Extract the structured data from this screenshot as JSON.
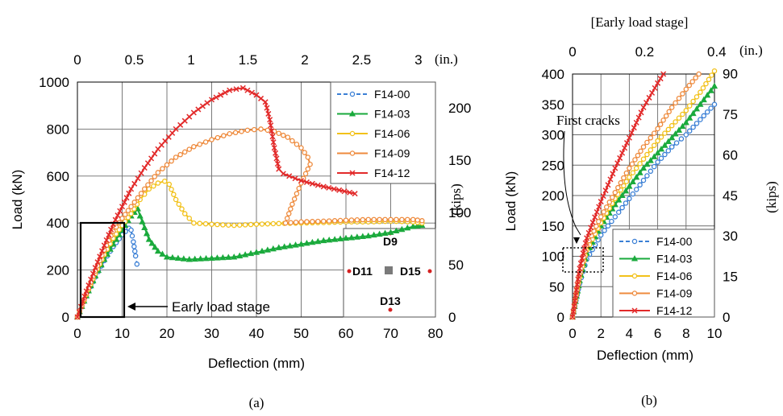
{
  "colors": {
    "F14-00": "#3a7fd5",
    "F14-03": "#1aaa3c",
    "F14-06": "#f2c11a",
    "F14-09": "#ee8a3c",
    "F14-12": "#e22a2a"
  },
  "chart_data": [
    {
      "id": "a",
      "type": "line",
      "panel_label": "(a)",
      "xlabel": "Deflection (mm)",
      "ylabel": "Load (kN)",
      "x2label": "(in.)",
      "y2label": "(kips)",
      "xlim": [
        0,
        80
      ],
      "ylim": [
        0,
        1000
      ],
      "x_ticks": [
        0,
        10,
        20,
        30,
        40,
        50,
        60,
        70,
        80
      ],
      "y_ticks": [
        0,
        200,
        400,
        600,
        800,
        1000
      ],
      "x2_ticks": [
        "0",
        "0.5",
        "1",
        "1.5",
        "2",
        "2.5",
        "3"
      ],
      "y2_ticks": [
        "0",
        "50",
        "100",
        "150",
        "200"
      ],
      "grid": true,
      "legend_position": "top-right",
      "annotation": "Early load stage",
      "inset_labels": [
        "D9",
        "D11",
        "D15",
        "D13"
      ],
      "series": [
        {
          "name": "F14-00",
          "marker": "circle",
          "dash": true,
          "points": [
            [
              0,
              0
            ],
            [
              2,
              90
            ],
            [
              4,
              170
            ],
            [
              6,
              240
            ],
            [
              8,
              300
            ],
            [
              10,
              350
            ],
            [
              11.5,
              378
            ],
            [
              12,
              370
            ],
            [
              12.5,
              320
            ],
            [
              13,
              260
            ],
            [
              13.3,
              225
            ]
          ]
        },
        {
          "name": "F14-03",
          "marker": "triangle",
          "points": [
            [
              0,
              0
            ],
            [
              2,
              90
            ],
            [
              4,
              175
            ],
            [
              6,
              245
            ],
            [
              8,
              310
            ],
            [
              10,
              370
            ],
            [
              12,
              430
            ],
            [
              13.5,
              460
            ],
            [
              14,
              430
            ],
            [
              15,
              380
            ],
            [
              16,
              330
            ],
            [
              18,
              280
            ],
            [
              20,
              255
            ],
            [
              25,
              245
            ],
            [
              30,
              250
            ],
            [
              35,
              255
            ],
            [
              40,
              275
            ],
            [
              45,
              295
            ],
            [
              50,
              310
            ],
            [
              55,
              325
            ],
            [
              60,
              335
            ],
            [
              65,
              345
            ],
            [
              70,
              360
            ],
            [
              75,
              385
            ],
            [
              77,
              390
            ]
          ]
        },
        {
          "name": "F14-06",
          "marker": "circle",
          "points": [
            [
              0,
              0
            ],
            [
              2,
              95
            ],
            [
              4,
              185
            ],
            [
              6,
              265
            ],
            [
              8,
              335
            ],
            [
              10,
              390
            ],
            [
              12,
              440
            ],
            [
              14,
              500
            ],
            [
              16,
              545
            ],
            [
              18,
              570
            ],
            [
              19.5,
              578
            ],
            [
              20.5,
              565
            ],
            [
              22,
              500
            ],
            [
              24,
              440
            ],
            [
              26,
              400
            ],
            [
              30,
              395
            ],
            [
              35,
              390
            ],
            [
              40,
              395
            ],
            [
              45,
              398
            ],
            [
              50,
              400
            ],
            [
              55,
              402
            ],
            [
              60,
              405
            ],
            [
              65,
              405
            ],
            [
              70,
              408
            ],
            [
              75,
              405
            ],
            [
              77,
              400
            ]
          ]
        },
        {
          "name": "F14-09",
          "marker": "circle",
          "points": [
            [
              0,
              0
            ],
            [
              2,
              100
            ],
            [
              4,
              195
            ],
            [
              6,
              285
            ],
            [
              8,
              365
            ],
            [
              10,
              420
            ],
            [
              12,
              470
            ],
            [
              15,
              545
            ],
            [
              18,
              615
            ],
            [
              22,
              680
            ],
            [
              26,
              725
            ],
            [
              30,
              755
            ],
            [
              34,
              780
            ],
            [
              38,
              795
            ],
            [
              41,
              800
            ],
            [
              44,
              790
            ],
            [
              47,
              765
            ],
            [
              50,
              720
            ],
            [
              51.5,
              680
            ],
            [
              52,
              650
            ],
            [
              50,
              570
            ],
            [
              48,
              480
            ],
            [
              46.5,
              400
            ],
            [
              50,
              405
            ],
            [
              55,
              408
            ],
            [
              60,
              412
            ],
            [
              65,
              415
            ],
            [
              70,
              415
            ],
            [
              75,
              415
            ],
            [
              77,
              410
            ]
          ]
        },
        {
          "name": "F14-12",
          "marker": "x",
          "points": [
            [
              0,
              0
            ],
            [
              2,
              110
            ],
            [
              4,
              210
            ],
            [
              6,
              305
            ],
            [
              8,
              395
            ],
            [
              10,
              470
            ],
            [
              12,
              545
            ],
            [
              15,
              635
            ],
            [
              18,
              715
            ],
            [
              22,
              800
            ],
            [
              26,
              870
            ],
            [
              30,
              925
            ],
            [
              34,
              965
            ],
            [
              37,
              975
            ],
            [
              40,
              945
            ],
            [
              42,
              915
            ],
            [
              43,
              840
            ],
            [
              44,
              720
            ],
            [
              45,
              630
            ],
            [
              46,
              610
            ],
            [
              50,
              580
            ],
            [
              55,
              555
            ],
            [
              62,
              525
            ]
          ]
        }
      ]
    },
    {
      "id": "b",
      "type": "line",
      "panel_label": "(b)",
      "title": "[Early load stage]",
      "xlabel": "Deflection (mm)",
      "ylabel": "Load (kN)",
      "x2label": "(in.)",
      "y2label": "(kips)",
      "xlim": [
        0,
        10
      ],
      "ylim": [
        0,
        400
      ],
      "x_ticks": [
        0,
        2,
        4,
        6,
        8,
        10
      ],
      "y_ticks": [
        0,
        50,
        100,
        150,
        200,
        250,
        300,
        350,
        400
      ],
      "x2_ticks": [
        "0",
        "0.2",
        "0.4"
      ],
      "y2_ticks": [
        "0",
        "15",
        "30",
        "45",
        "60",
        "75",
        "90"
      ],
      "grid": true,
      "legend_position": "bottom-right",
      "annotation": "First cracks",
      "series": [
        {
          "name": "F14-00",
          "marker": "circle",
          "dash": true,
          "points": [
            [
              0,
              0
            ],
            [
              0.5,
              55
            ],
            [
              1,
              95
            ],
            [
              2,
              135
            ],
            [
              3,
              165
            ],
            [
              4,
              195
            ],
            [
              5,
              225
            ],
            [
              6,
              255
            ],
            [
              7,
              280
            ],
            [
              8,
              300
            ],
            [
              9,
              325
            ],
            [
              10,
              350
            ]
          ]
        },
        {
          "name": "F14-03",
          "marker": "triangle",
          "points": [
            [
              0,
              0
            ],
            [
              0.5,
              60
            ],
            [
              1,
              105
            ],
            [
              2,
              150
            ],
            [
              3,
              185
            ],
            [
              4,
              215
            ],
            [
              5,
              245
            ],
            [
              6,
              270
            ],
            [
              7,
              295
            ],
            [
              8,
              320
            ],
            [
              9,
              350
            ],
            [
              10,
              380
            ]
          ]
        },
        {
          "name": "F14-06",
          "marker": "circle",
          "points": [
            [
              0,
              0
            ],
            [
              0.5,
              65
            ],
            [
              1,
              110
            ],
            [
              2,
              155
            ],
            [
              3,
              195
            ],
            [
              4,
              230
            ],
            [
              5,
              260
            ],
            [
              6,
              290
            ],
            [
              7,
              315
            ],
            [
              8,
              340
            ],
            [
              9,
              370
            ],
            [
              10,
              405
            ]
          ]
        },
        {
          "name": "F14-09",
          "marker": "circle",
          "points": [
            [
              0,
              0
            ],
            [
              0.5,
              70
            ],
            [
              1,
              118
            ],
            [
              2,
              165
            ],
            [
              3,
              205
            ],
            [
              4,
              245
            ],
            [
              5,
              280
            ],
            [
              6,
              310
            ],
            [
              7,
              345
            ],
            [
              8,
              375
            ],
            [
              8.9,
              400
            ]
          ]
        },
        {
          "name": "F14-12",
          "marker": "x",
          "points": [
            [
              0,
              0
            ],
            [
              0.5,
              80
            ],
            [
              1,
              130
            ],
            [
              2,
              190
            ],
            [
              3,
              245
            ],
            [
              4,
              295
            ],
            [
              5,
              345
            ],
            [
              6,
              385
            ],
            [
              6.4,
              400
            ]
          ]
        }
      ]
    }
  ]
}
